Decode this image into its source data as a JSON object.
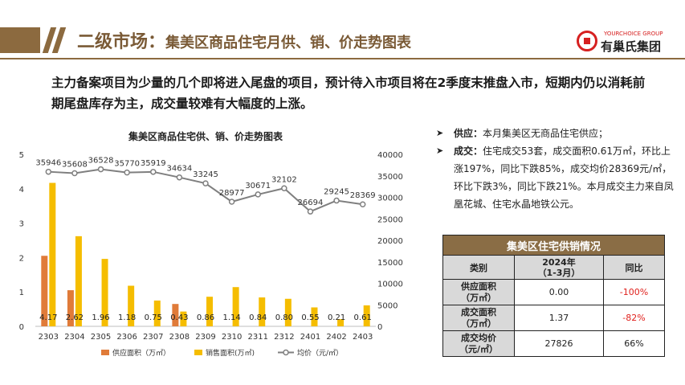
{
  "header": {
    "title_main": "二级市场：",
    "title_sub": "集美区商品住宅月供、销、价走势图表",
    "logo_en": "YOURCHOICE GROUP",
    "logo_cn": "有巢氏集团"
  },
  "lead_text": "主力备案项目为少量的几个即将进入尾盘的项目，预计待入市项目将在2季度末推盘入市，短期内仍以消耗前期尾盘库存为主，成交量较难有大幅度的上涨。",
  "chart_data": {
    "type": "bar",
    "title": "集美区商品住宅供、销、价走势图表",
    "categories": [
      "2303",
      "2304",
      "2305",
      "2306",
      "2307",
      "2308",
      "2309",
      "2310",
      "2311",
      "2312",
      "2401",
      "2402",
      "2403"
    ],
    "series": [
      {
        "name": "供应面积（万㎡）",
        "kind": "bar",
        "axis": "left",
        "color": "#e07b39",
        "values": [
          2.05,
          1.05,
          0,
          0,
          0,
          0.65,
          0,
          0,
          0,
          0,
          0,
          0,
          0
        ]
      },
      {
        "name": "销售面积(万㎡)",
        "kind": "bar",
        "axis": "left",
        "color": "#f5bd00",
        "values": [
          4.17,
          2.62,
          1.96,
          1.18,
          0.75,
          0.43,
          0.86,
          1.14,
          0.84,
          0.8,
          0.55,
          0.21,
          0.61
        ],
        "labels": [
          "4.17",
          "2.62",
          "1.96",
          "1.18",
          "0.75",
          "0.43",
          "0.86",
          "1.14",
          "0.84",
          "0.80",
          "0.55",
          "0.21",
          "0.61"
        ]
      },
      {
        "name": "均价（元/㎡）",
        "kind": "line",
        "axis": "right",
        "color": "#7f7f7f",
        "values": [
          35946,
          35608,
          36528,
          35770,
          35919,
          34634,
          33245,
          28977,
          30671,
          32102,
          26694,
          29245,
          28369
        ]
      }
    ],
    "y_left": {
      "min": 0,
      "max": 5,
      "ticks": [
        0,
        1,
        2,
        3,
        4,
        5
      ]
    },
    "y_right": {
      "min": 0,
      "max": 40000,
      "ticks": [
        0,
        5000,
        10000,
        15000,
        20000,
        25000,
        30000,
        35000,
        40000
      ]
    },
    "grid": false,
    "legend_position": "bottom"
  },
  "bullets": [
    {
      "label": "供应：",
      "text": "本月集美区无商品住宅供应；"
    },
    {
      "label": "成交：",
      "text": "住宅成交53套，成交面积0.61万㎡，环比上涨197%，同比下跌85%，成交均价28369元/㎡，环比下跌3%，同比下跌21%。本月成交主力来自凤凰花城、住宅水晶地铁公元。"
    }
  ],
  "supply_table": {
    "caption": "集美区住宅供销情况",
    "headers": [
      "类别",
      "2024年\n（1-3月）",
      "同比"
    ],
    "rows": [
      {
        "label": "供应面积\n（万㎡）",
        "value": "0.00",
        "yoy": "-100%",
        "yoy_color": "#e0201c"
      },
      {
        "label": "成交面积\n（万㎡）",
        "value": "1.37",
        "yoy": "-82%",
        "yoy_color": "#e0201c"
      },
      {
        "label": "成交均价\n（元/㎡）",
        "value": "27826",
        "yoy": "66%",
        "yoy_color": "#222222"
      }
    ]
  }
}
